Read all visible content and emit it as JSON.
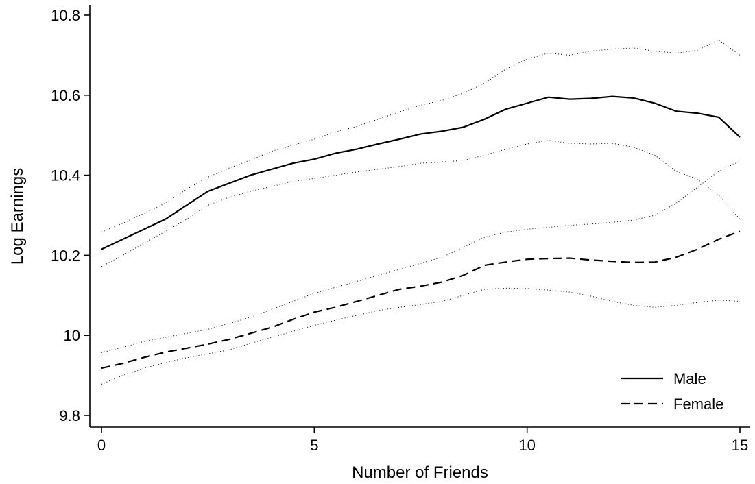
{
  "chart_data": {
    "type": "line",
    "title": "",
    "xlabel": "Number of Friends",
    "ylabel": "Log Earnings",
    "xlim": [
      0,
      15
    ],
    "ylim": [
      9.8,
      10.82
    ],
    "xticks": [
      0,
      5,
      10,
      15
    ],
    "yticks": [
      9.8,
      10,
      10.2,
      10.4,
      10.6,
      10.8
    ],
    "ytick_labels": [
      "9.8",
      "10",
      "10.2",
      "10.4",
      "10.6",
      "10.8"
    ],
    "xtick_labels": [
      "0",
      "5",
      "10",
      "15"
    ],
    "grid": false,
    "legend_position": "bottom-right",
    "x": [
      0,
      0.5,
      1,
      1.5,
      2,
      2.5,
      3,
      3.5,
      4,
      4.5,
      5,
      5.5,
      6,
      6.5,
      7,
      7.5,
      8,
      8.5,
      9,
      9.5,
      10,
      10.5,
      11,
      11.5,
      12,
      12.5,
      13,
      13.5,
      14,
      14.5,
      15
    ],
    "series": [
      {
        "name": "Male",
        "style": "solid",
        "values": [
          10.215,
          10.24,
          10.265,
          10.29,
          10.325,
          10.36,
          10.38,
          10.4,
          10.415,
          10.43,
          10.44,
          10.455,
          10.465,
          10.478,
          10.49,
          10.503,
          10.51,
          10.52,
          10.54,
          10.565,
          10.58,
          10.595,
          10.59,
          10.592,
          10.597,
          10.593,
          10.58,
          10.56,
          10.555,
          10.545,
          10.495
        ],
        "ci_lower": [
          10.172,
          10.2,
          10.23,
          10.26,
          10.29,
          10.325,
          10.345,
          10.36,
          10.372,
          10.385,
          10.392,
          10.4,
          10.408,
          10.415,
          10.422,
          10.43,
          10.433,
          10.437,
          10.45,
          10.465,
          10.478,
          10.487,
          10.48,
          10.478,
          10.48,
          10.47,
          10.45,
          10.41,
          10.39,
          10.35,
          10.29
        ],
        "ci_upper": [
          10.258,
          10.28,
          10.305,
          10.33,
          10.365,
          10.395,
          10.418,
          10.438,
          10.46,
          10.475,
          10.49,
          10.508,
          10.522,
          10.54,
          10.558,
          10.575,
          10.587,
          10.605,
          10.63,
          10.665,
          10.69,
          10.705,
          10.7,
          10.71,
          10.715,
          10.718,
          10.71,
          10.705,
          10.712,
          10.738,
          10.7
        ]
      },
      {
        "name": "Female",
        "style": "dashed",
        "values": [
          9.918,
          9.93,
          9.945,
          9.958,
          9.968,
          9.978,
          9.99,
          10.005,
          10.02,
          10.04,
          10.058,
          10.07,
          10.085,
          10.1,
          10.115,
          10.123,
          10.133,
          10.15,
          10.175,
          10.183,
          10.19,
          10.192,
          10.193,
          10.188,
          10.185,
          10.182,
          10.183,
          10.195,
          10.215,
          10.24,
          10.26
        ],
        "ci_lower": [
          9.878,
          9.9,
          9.918,
          9.932,
          9.944,
          9.954,
          9.964,
          9.98,
          9.995,
          10.01,
          10.025,
          10.038,
          10.05,
          10.062,
          10.07,
          10.077,
          10.085,
          10.1,
          10.115,
          10.118,
          10.117,
          10.113,
          10.108,
          10.098,
          10.085,
          10.075,
          10.07,
          10.075,
          10.082,
          10.088,
          10.085
        ],
        "ci_upper": [
          9.957,
          9.97,
          9.985,
          9.995,
          10.005,
          10.015,
          10.03,
          10.045,
          10.065,
          10.085,
          10.105,
          10.12,
          10.135,
          10.15,
          10.165,
          10.18,
          10.195,
          10.22,
          10.245,
          10.258,
          10.265,
          10.27,
          10.275,
          10.278,
          10.282,
          10.288,
          10.3,
          10.33,
          10.37,
          10.41,
          10.435
        ]
      }
    ]
  }
}
